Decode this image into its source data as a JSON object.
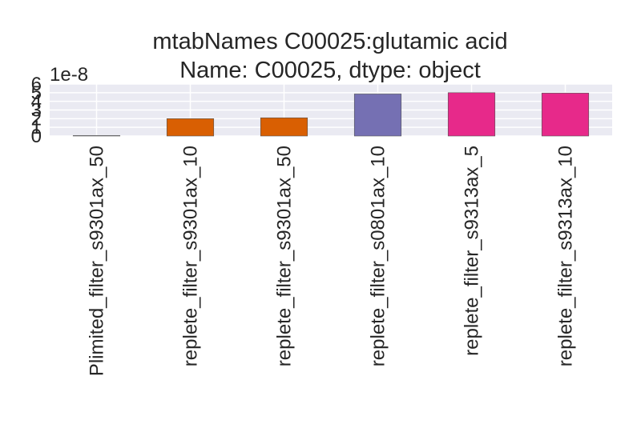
{
  "chart_data": {
    "type": "bar",
    "title_line1": "mtabNames    C00025:glutamic acid",
    "title_line2": "Name: C00025, dtype: object",
    "offset_label": "1e-8",
    "xlabel": "",
    "ylabel": "",
    "ylim": [
      0,
      6
    ],
    "yticks": [
      "0",
      "1",
      "2",
      "3",
      "4",
      "5",
      "6"
    ],
    "grid": true,
    "categories": [
      "Plimited_filter_s9301ax_50",
      "replete_filter_s9301ax_10",
      "replete_filter_s9301ax_50",
      "replete_filter_s0801ax_10",
      "replete_filter_s9313ax_5",
      "replete_filter_s9313ax_10"
    ],
    "values": [
      0.05,
      2.0,
      2.1,
      4.85,
      5.0,
      4.95
    ],
    "colors": [
      "#7570b3",
      "#d95f02",
      "#d95f02",
      "#7570b3",
      "#e7298a",
      "#e7298a"
    ]
  }
}
